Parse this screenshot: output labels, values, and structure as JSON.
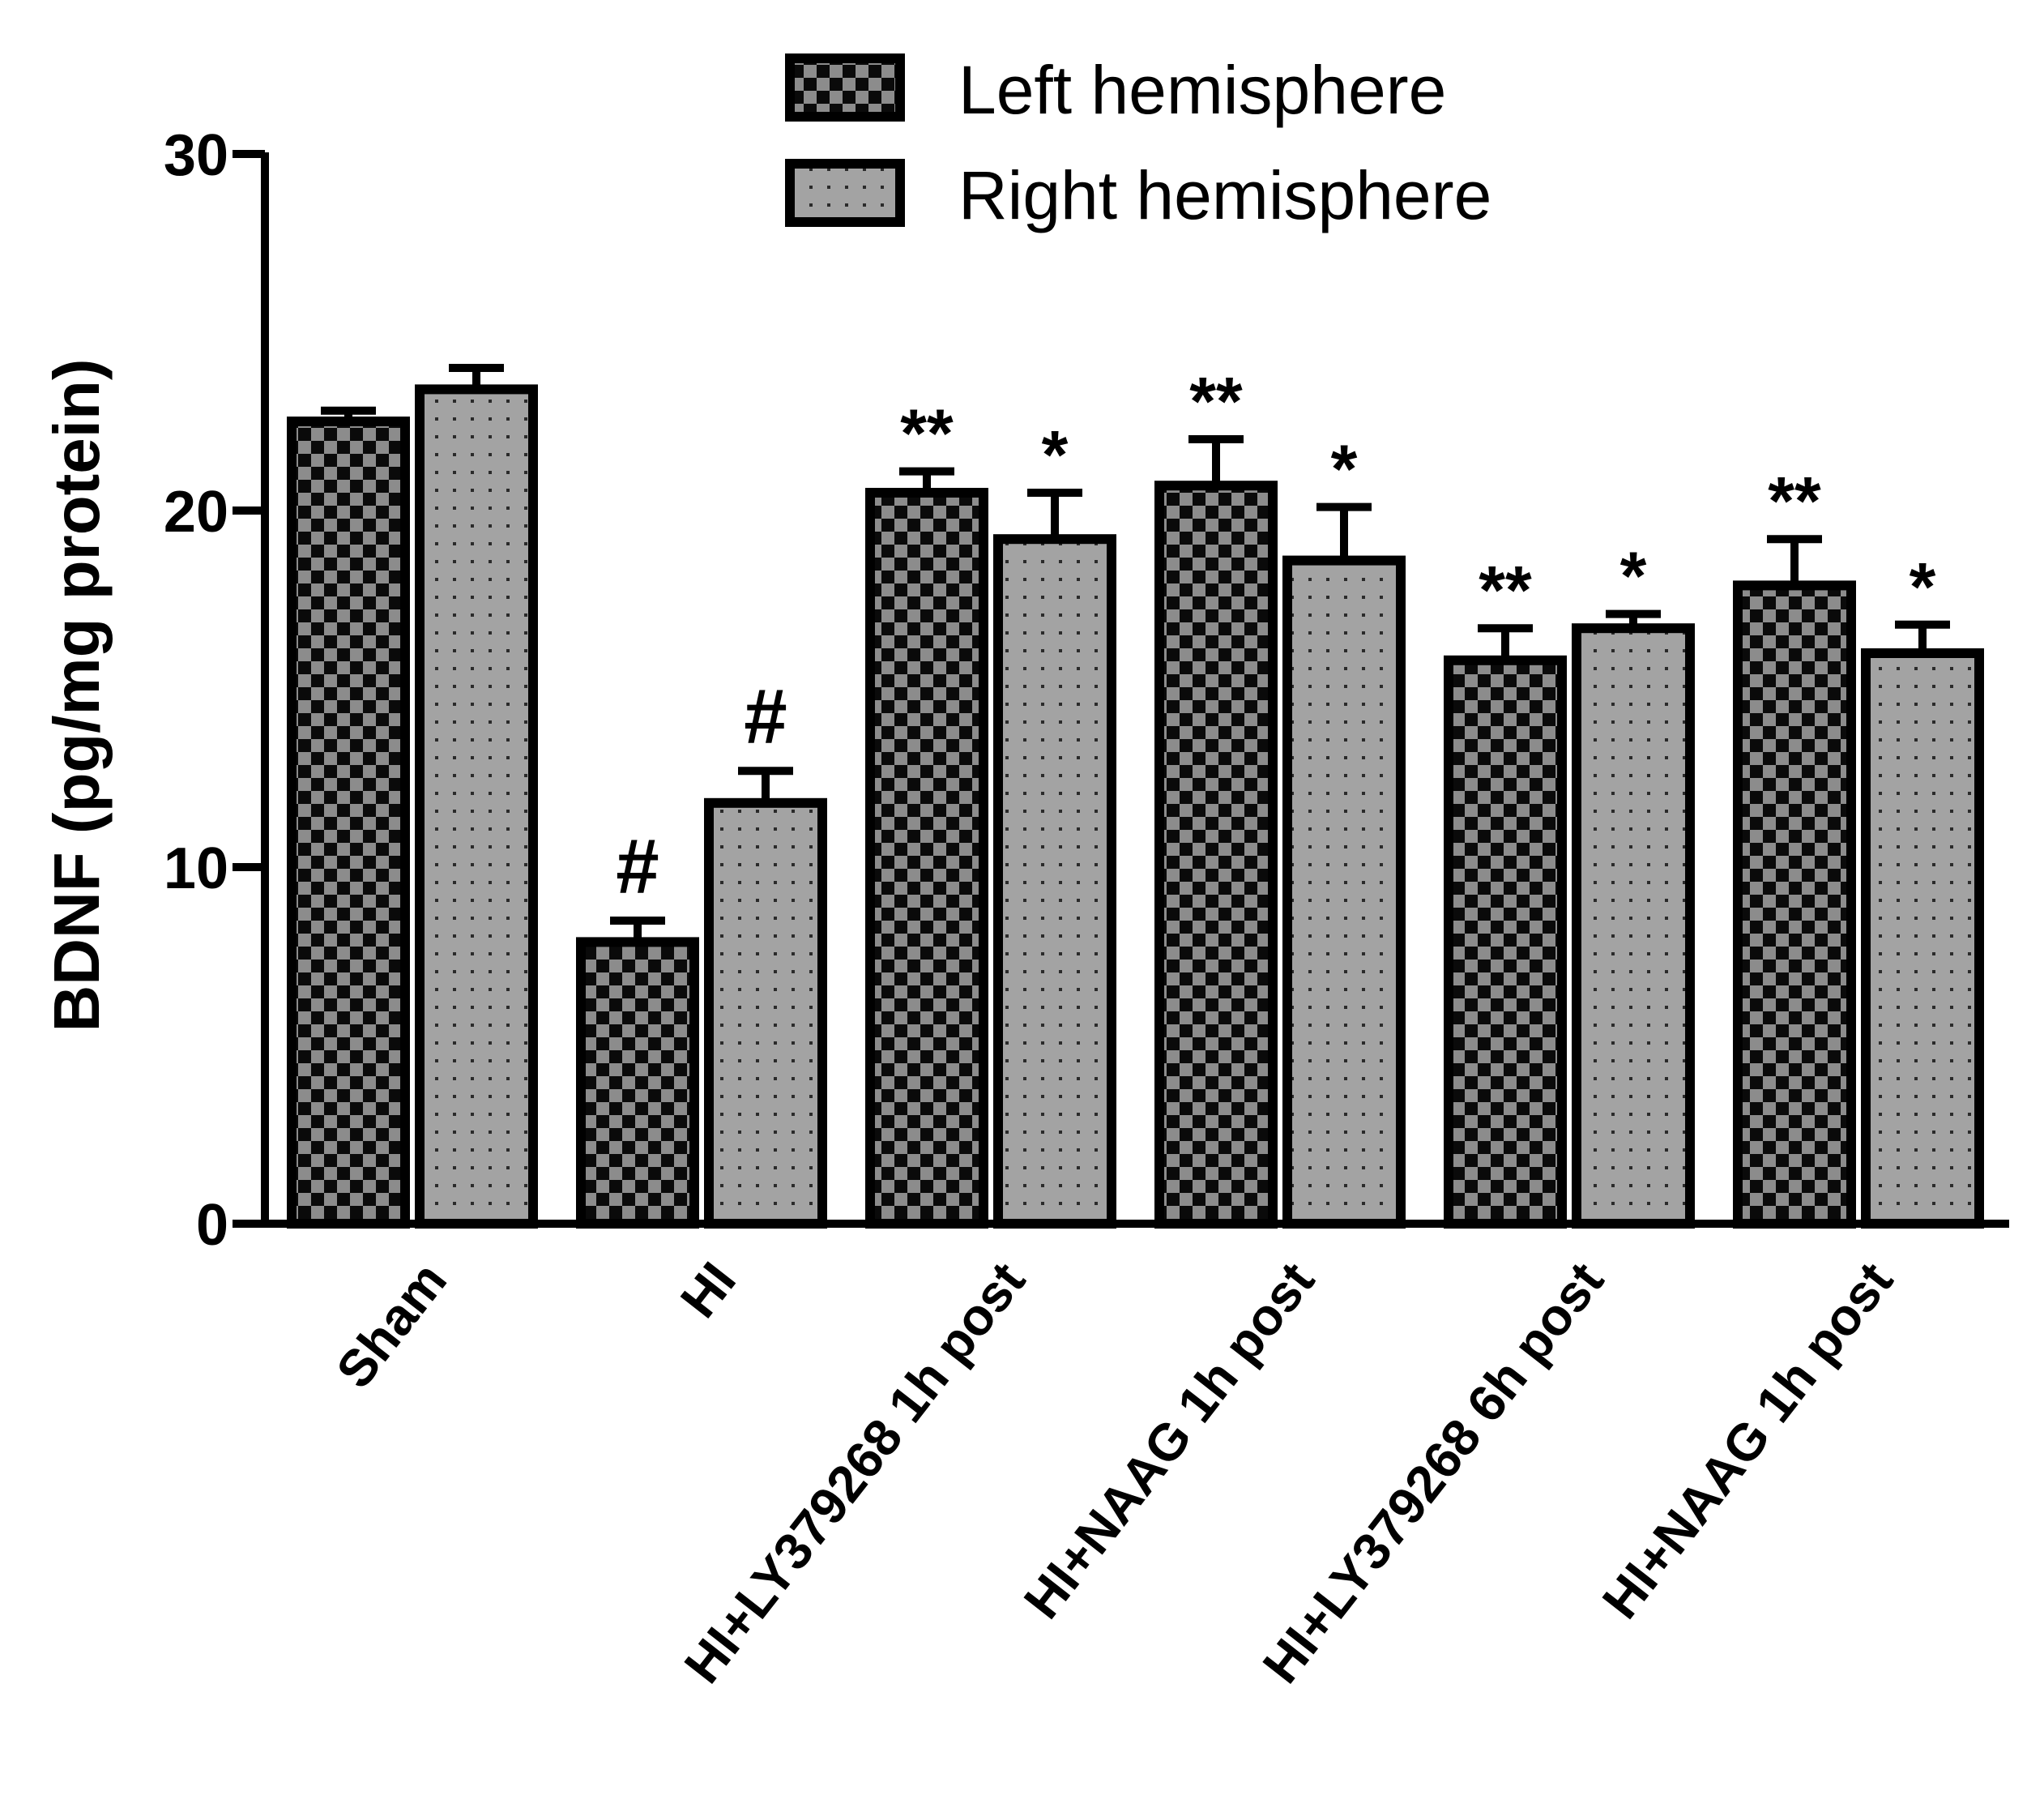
{
  "chart_data": {
    "type": "bar",
    "ylabel": "BDNF (pg/mg protein)",
    "xlabel": "",
    "ylim": [
      0,
      30
    ],
    "yticks": [
      0,
      10,
      20,
      30
    ],
    "legend_position": "top",
    "categories": [
      "Sham",
      "HI",
      "HI+LY379268 1h post",
      "HI+NAAG 1h post",
      "HI+LY379268 6h post",
      "HI+NAAG 1h post"
    ],
    "series": [
      {
        "name": "Left hemisphere",
        "pattern": "checkerboard",
        "colors": [
          "#000000",
          "#8c8c8c"
        ],
        "values": [
          22.5,
          7.9,
          20.5,
          20.7,
          15.8,
          17.9
        ],
        "errors": [
          0.3,
          0.6,
          0.6,
          1.3,
          0.9,
          1.3
        ],
        "annotations": [
          "",
          "#",
          "**",
          "**",
          "**",
          "**"
        ]
      },
      {
        "name": "Right hemisphere",
        "pattern": "dotted",
        "colors": [
          "#a0a0a0",
          "#2a2a2a"
        ],
        "values": [
          23.4,
          11.8,
          19.2,
          18.6,
          16.7,
          16.0
        ],
        "errors": [
          0.6,
          0.9,
          1.3,
          1.5,
          0.4,
          0.8
        ],
        "annotations": [
          "",
          "#",
          "*",
          "*",
          "*",
          "*"
        ]
      }
    ]
  }
}
